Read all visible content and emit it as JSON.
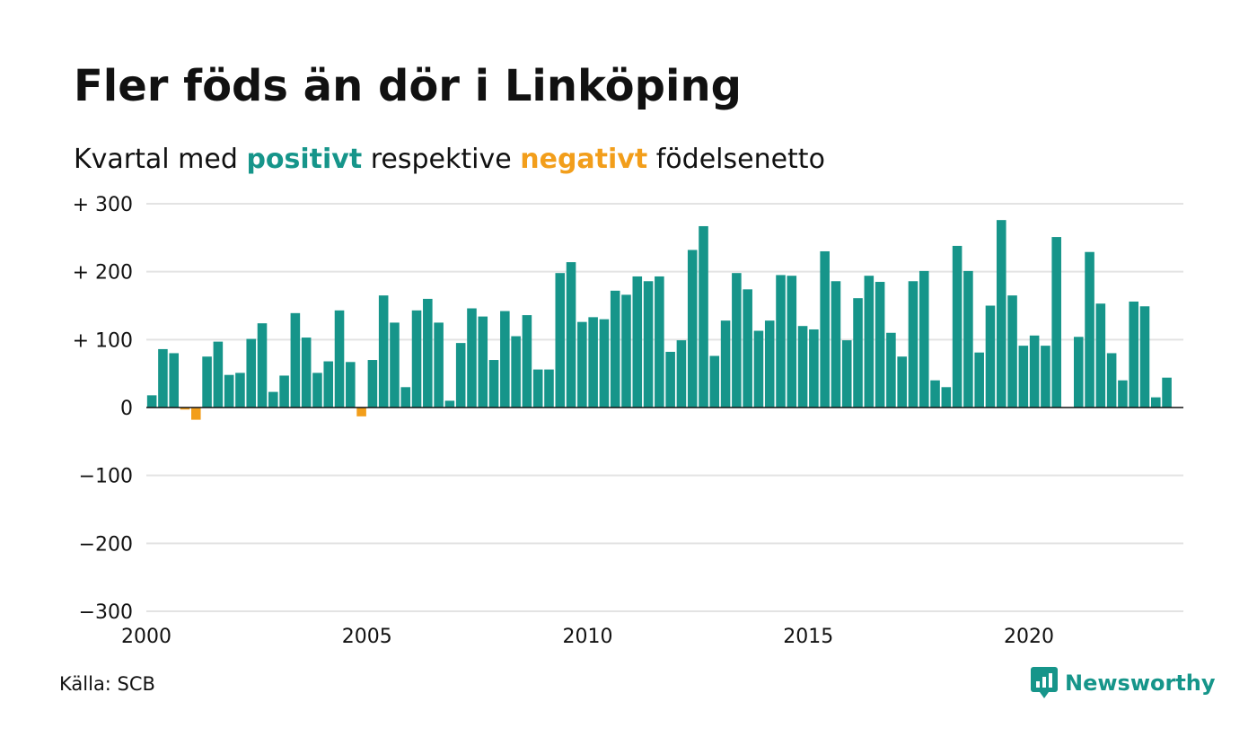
{
  "title": "Fler föds än dör i Linköping",
  "subtitle": {
    "before": "Kvartal med",
    "positive": "positivt",
    "middle": "respektive",
    "negative": "negativt",
    "after": "födelsenetto"
  },
  "source": "Källa: SCB",
  "brand": "Newsworthy",
  "colors": {
    "positive": "#16958a",
    "negative": "#f29e1b",
    "grid": "#e3e3e3",
    "axis": "#111111"
  },
  "chart_data": {
    "type": "bar",
    "ylim": [
      -300,
      300
    ],
    "yticks": [
      {
        "value": 300,
        "label": "+ 300"
      },
      {
        "value": 200,
        "label": "+ 200"
      },
      {
        "value": 100,
        "label": "+ 100"
      },
      {
        "value": 0,
        "label": "0"
      },
      {
        "value": -100,
        "label": "−100"
      },
      {
        "value": -200,
        "label": "−200"
      },
      {
        "value": -300,
        "label": "−300"
      }
    ],
    "xlim": [
      2000,
      2023.5
    ],
    "xticks": [
      {
        "value": 2000,
        "label": "2000"
      },
      {
        "value": 2005,
        "label": "2005"
      },
      {
        "value": 2010,
        "label": "2010"
      },
      {
        "value": 2015,
        "label": "2015"
      },
      {
        "value": 2020,
        "label": "2020"
      }
    ],
    "start_year": 2000,
    "values": [
      18,
      86,
      80,
      -3,
      -18,
      75,
      97,
      48,
      51,
      101,
      124,
      23,
      47,
      139,
      103,
      51,
      68,
      143,
      67,
      -13,
      70,
      165,
      125,
      30,
      143,
      160,
      125,
      10,
      95,
      146,
      134,
      70,
      142,
      105,
      136,
      56,
      56,
      198,
      214,
      126,
      133,
      130,
      172,
      166,
      193,
      186,
      193,
      82,
      99,
      232,
      267,
      76,
      128,
      198,
      174,
      113,
      128,
      195,
      194,
      120,
      115,
      230,
      186,
      99,
      161,
      194,
      185,
      110,
      75,
      186,
      201,
      40,
      30,
      238,
      201,
      81,
      150,
      276,
      165,
      91,
      106,
      91,
      251,
      0,
      104,
      229,
      153,
      80,
      40,
      156,
      149,
      15,
      44
    ]
  }
}
